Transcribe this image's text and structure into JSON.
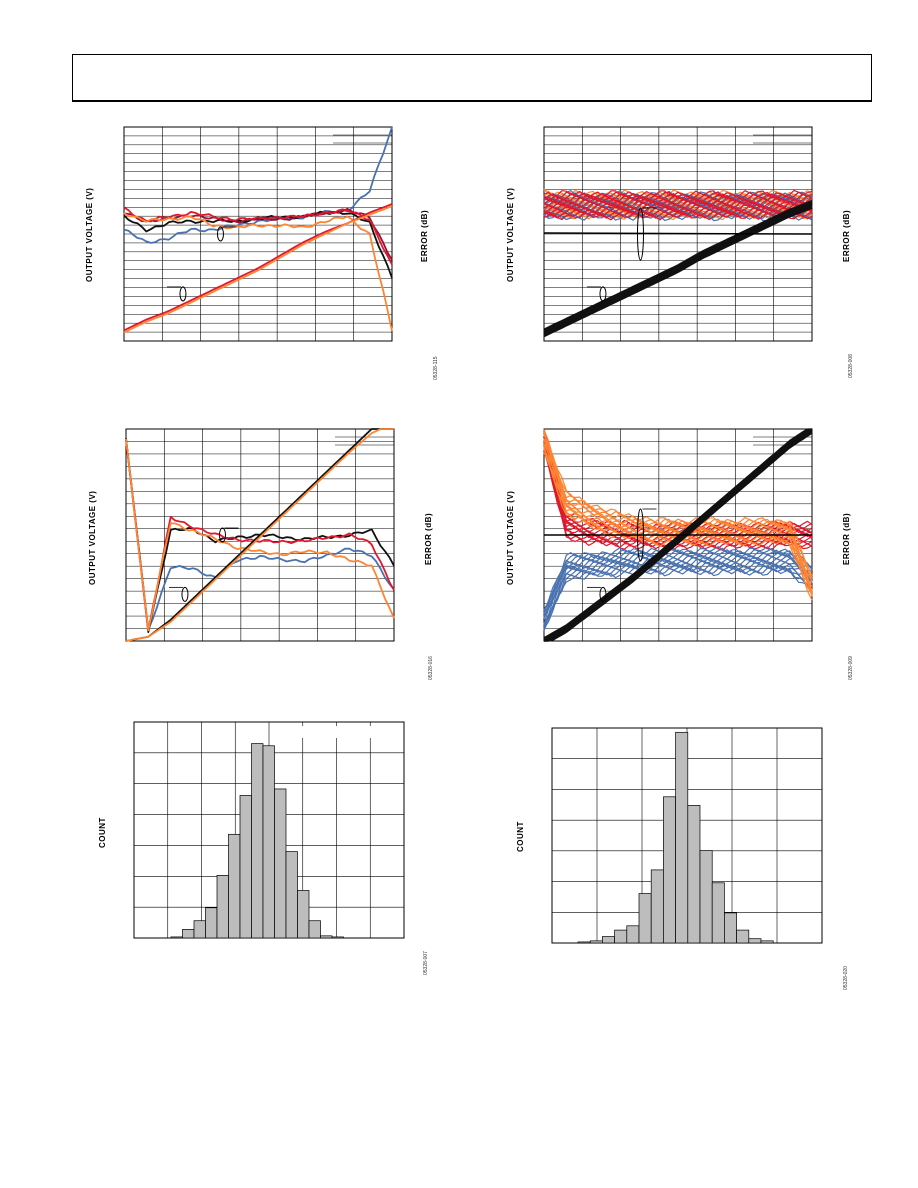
{
  "colors": {
    "blue": "#4a72b0",
    "black": "#111111",
    "orange": "#ff8533",
    "red": "#e0182d",
    "darkred": "#9b1030",
    "bar": "#bdbdbd"
  },
  "chart_data": [
    {
      "id": "p1",
      "type": "line",
      "ylabel": "OUTPUT VOLTAGE (V)",
      "y2label": "ERROR (dB)",
      "figid": "05328-115",
      "grid": true,
      "series": [
        {
          "role": "error",
          "color": "blue",
          "y": [
            0.52,
            0.46,
            0.48,
            0.52,
            0.52,
            0.54,
            0.56,
            0.57,
            0.58,
            0.6,
            0.61,
            0.7,
            1.0
          ]
        },
        {
          "role": "error",
          "color": "black",
          "y": [
            0.58,
            0.52,
            0.55,
            0.56,
            0.56,
            0.56,
            0.57,
            0.58,
            0.58,
            0.6,
            0.6,
            0.55,
            0.3
          ]
        },
        {
          "role": "error",
          "color": "darkred",
          "y": [
            0.6,
            0.56,
            0.57,
            0.59,
            0.57,
            0.56,
            0.57,
            0.57,
            0.58,
            0.6,
            0.61,
            0.58,
            0.38
          ]
        },
        {
          "role": "error",
          "color": "red",
          "y": [
            0.62,
            0.56,
            0.58,
            0.6,
            0.58,
            0.57,
            0.57,
            0.58,
            0.58,
            0.6,
            0.61,
            0.57,
            0.35
          ]
        },
        {
          "role": "error",
          "color": "orange",
          "y": [
            0.6,
            0.56,
            0.57,
            0.58,
            0.54,
            0.53,
            0.54,
            0.54,
            0.53,
            0.56,
            0.58,
            0.5,
            0.05
          ]
        },
        {
          "role": "output",
          "color": "red",
          "y": [
            0.05,
            0.1,
            0.14,
            0.19,
            0.24,
            0.29,
            0.34,
            0.4,
            0.46,
            0.51,
            0.55,
            0.6,
            0.64
          ]
        },
        {
          "role": "output",
          "color": "orange",
          "y": [
            0.04,
            0.09,
            0.13,
            0.18,
            0.23,
            0.28,
            0.33,
            0.39,
            0.45,
            0.5,
            0.55,
            0.59,
            0.63
          ]
        }
      ]
    },
    {
      "id": "p2",
      "type": "line",
      "ylabel": "OUTPUT VOLTAGE (V)",
      "y2label": "ERROR (dB)",
      "figid": "05328-008",
      "grid": true,
      "series": [
        {
          "role": "error",
          "color": "orange",
          "y": [
            0.65,
            0.64,
            0.64,
            0.64,
            0.64,
            0.64,
            0.64,
            0.64,
            0.64,
            0.64,
            0.64,
            0.64,
            0.64
          ]
        },
        {
          "role": "error",
          "color": "blue",
          "y": [
            0.63,
            0.64,
            0.63,
            0.64,
            0.63,
            0.64,
            0.63,
            0.64,
            0.63,
            0.64,
            0.63,
            0.64,
            0.63
          ]
        },
        {
          "role": "error",
          "color": "red",
          "y": [
            0.64,
            0.64,
            0.64,
            0.64,
            0.64,
            0.64,
            0.64,
            0.64,
            0.64,
            0.64,
            0.64,
            0.64,
            0.64
          ]
        },
        {
          "role": "output",
          "color": "black",
          "y": [
            0.04,
            0.09,
            0.14,
            0.19,
            0.24,
            0.29,
            0.34,
            0.4,
            0.45,
            0.5,
            0.55,
            0.6,
            0.64
          ]
        }
      ]
    },
    {
      "id": "p3",
      "type": "line",
      "ylabel": "OUTPUT VOLTAGE (V)",
      "y2label": "ERROR (dB)",
      "figid": "05328-016",
      "grid": true,
      "series": [
        {
          "role": "error",
          "color": "blue",
          "y": [
            0.95,
            0.05,
            0.35,
            0.34,
            0.3,
            0.38,
            0.4,
            0.38,
            0.38,
            0.4,
            0.44,
            0.4,
            0.24
          ]
        },
        {
          "role": "error",
          "color": "black",
          "y": [
            0.95,
            0.05,
            0.52,
            0.53,
            0.47,
            0.49,
            0.5,
            0.49,
            0.48,
            0.49,
            0.5,
            0.52,
            0.36
          ]
        },
        {
          "role": "error",
          "color": "red",
          "y": [
            0.95,
            0.05,
            0.58,
            0.54,
            0.5,
            0.48,
            0.47,
            0.47,
            0.47,
            0.49,
            0.5,
            0.46,
            0.24
          ]
        },
        {
          "role": "error",
          "color": "orange",
          "y": [
            0.95,
            0.05,
            0.56,
            0.52,
            0.48,
            0.44,
            0.42,
            0.41,
            0.42,
            0.42,
            0.38,
            0.36,
            0.1
          ]
        },
        {
          "role": "output",
          "color": "black",
          "y": [
            0.0,
            0.02,
            0.1,
            0.2,
            0.3,
            0.4,
            0.5,
            0.6,
            0.7,
            0.8,
            0.9,
            1.0,
            1.05
          ]
        },
        {
          "role": "output",
          "color": "orange",
          "y": [
            0.0,
            0.02,
            0.09,
            0.19,
            0.29,
            0.39,
            0.49,
            0.59,
            0.69,
            0.79,
            0.89,
            0.98,
            1.03
          ]
        }
      ]
    },
    {
      "id": "p4",
      "type": "line",
      "ylabel": "OUTPUT VOLTAGE (V)",
      "y2label": "ERROR (dB)",
      "figid": "05328-009",
      "grid": true,
      "series": [
        {
          "role": "error",
          "color": "red",
          "y": [
            0.95,
            0.55,
            0.52,
            0.51,
            0.5,
            0.5,
            0.5,
            0.5,
            0.5,
            0.5,
            0.5,
            0.51,
            0.5
          ]
        },
        {
          "role": "error",
          "color": "blue",
          "y": [
            0.1,
            0.35,
            0.36,
            0.37,
            0.38,
            0.38,
            0.38,
            0.38,
            0.38,
            0.38,
            0.38,
            0.38,
            0.3
          ]
        },
        {
          "role": "error",
          "color": "orange",
          "y": [
            0.95,
            0.65,
            0.6,
            0.56,
            0.54,
            0.52,
            0.52,
            0.52,
            0.52,
            0.52,
            0.52,
            0.52,
            0.25
          ]
        },
        {
          "role": "output",
          "color": "black",
          "y": [
            0.0,
            0.06,
            0.14,
            0.22,
            0.3,
            0.39,
            0.48,
            0.57,
            0.66,
            0.75,
            0.84,
            0.93,
            1.0
          ]
        }
      ]
    },
    {
      "id": "h1",
      "type": "bar",
      "ylabel": "COUNT",
      "figid": "05328-007",
      "values": [
        0.005,
        0.04,
        0.08,
        0.14,
        0.29,
        0.48,
        0.66,
        0.9,
        0.89,
        0.69,
        0.4,
        0.22,
        0.08,
        0.01,
        0.005
      ]
    },
    {
      "id": "h2",
      "type": "bar",
      "ylabel": "COUNT",
      "figid": "05328-020",
      "values": [
        0.005,
        0.01,
        0.03,
        0.06,
        0.08,
        0.23,
        0.34,
        0.68,
        0.98,
        0.64,
        0.43,
        0.28,
        0.14,
        0.06,
        0.02,
        0.01
      ]
    }
  ]
}
